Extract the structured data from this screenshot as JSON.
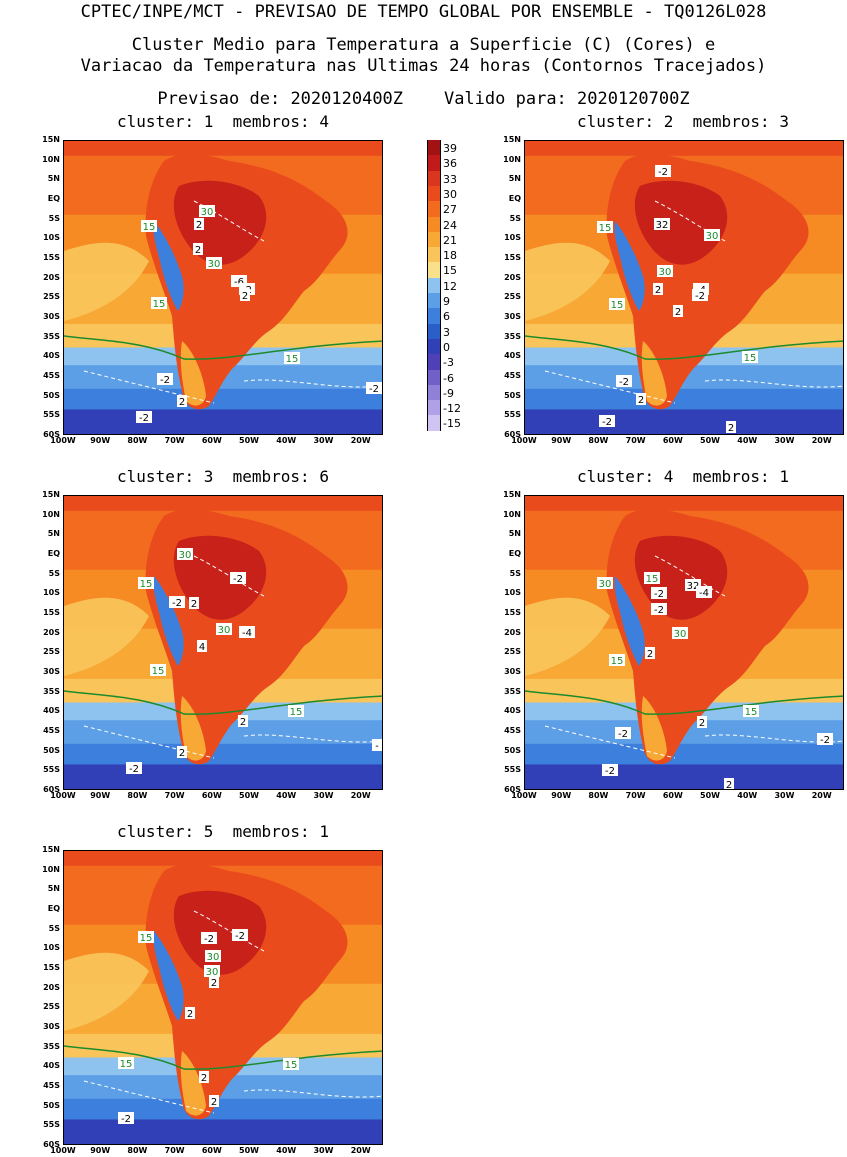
{
  "header": {
    "top": "CPTEC/INPE/MCT - PREVISAO DE TEMPO GLOBAL POR ENSEMBLE - TQ0126L028",
    "title_line1": "Cluster Medio para Temperatura a Superficie (C) (Cores) e",
    "title_line2": "Variacao da Temperatura nas Ultimas 24 horas (Contornos Tracejados)",
    "dates": "Previsao de: 2020120400Z    Valido para: 2020120700Z"
  },
  "panels": [
    {
      "title": "cluster: 1  membros: 4",
      "labels": [
        [
          "15",
          "green"
        ],
        [
          "15",
          "green"
        ],
        [
          "15",
          "green"
        ],
        [
          "30",
          "green"
        ],
        [
          "30",
          "green"
        ],
        [
          "2",
          "white"
        ],
        [
          "2",
          "white"
        ],
        [
          "-6",
          "white"
        ],
        [
          "-2",
          "white"
        ],
        [
          "2",
          "white"
        ],
        [
          "-2",
          "white"
        ],
        [
          "2",
          "white"
        ],
        [
          "-2",
          "white"
        ],
        [
          "-2",
          "white"
        ]
      ]
    },
    {
      "title": "cluster: 2  membros: 3",
      "labels": [
        [
          "-2",
          "white"
        ],
        [
          "15",
          "green"
        ],
        [
          "32",
          "white"
        ],
        [
          "30",
          "green"
        ],
        [
          "30",
          "green"
        ],
        [
          "2",
          "white"
        ],
        [
          "-4",
          "white"
        ],
        [
          "-2",
          "white"
        ],
        [
          "2",
          "white"
        ],
        [
          "15",
          "green"
        ],
        [
          "15",
          "green"
        ],
        [
          "-2",
          "white"
        ],
        [
          "2",
          "white"
        ],
        [
          "-2",
          "white"
        ],
        [
          "2",
          "white"
        ]
      ]
    },
    {
      "title": "cluster: 3  membros: 6",
      "labels": [
        [
          "30",
          "green"
        ],
        [
          "15",
          "green"
        ],
        [
          "-2",
          "white"
        ],
        [
          "-2",
          "white"
        ],
        [
          "2",
          "white"
        ],
        [
          "30",
          "green"
        ],
        [
          "-4",
          "white"
        ],
        [
          "4",
          "white"
        ],
        [
          "15",
          "green"
        ],
        [
          "15",
          "green"
        ],
        [
          "2",
          "white"
        ],
        [
          "2",
          "white"
        ],
        [
          "-2",
          "white"
        ],
        [
          "-",
          "white"
        ]
      ]
    },
    {
      "title": "cluster: 4  membros: 1",
      "labels": [
        [
          "15",
          "green"
        ],
        [
          "30",
          "green"
        ],
        [
          "32",
          "white"
        ],
        [
          "-2",
          "white"
        ],
        [
          "-4",
          "white"
        ],
        [
          "-2",
          "white"
        ],
        [
          "30",
          "green"
        ],
        [
          "2",
          "white"
        ],
        [
          "15",
          "green"
        ],
        [
          "15",
          "green"
        ],
        [
          "2",
          "white"
        ],
        [
          "-2",
          "white"
        ],
        [
          "-2",
          "white"
        ],
        [
          "-2",
          "white"
        ],
        [
          "2",
          "white"
        ]
      ]
    },
    {
      "title": "cluster: 5  membros: 1",
      "labels": [
        [
          "15",
          "green"
        ],
        [
          "-2",
          "white"
        ],
        [
          "-2",
          "white"
        ],
        [
          "30",
          "green"
        ],
        [
          "30",
          "green"
        ],
        [
          "2",
          "white"
        ],
        [
          "2",
          "white"
        ],
        [
          "15",
          "green"
        ],
        [
          "15",
          "green"
        ],
        [
          "2",
          "white"
        ],
        [
          "2",
          "white"
        ],
        [
          "-2",
          "white"
        ]
      ]
    }
  ],
  "lat_labels": [
    "15N",
    "10N",
    "5N",
    "EQ",
    "5S",
    "10S",
    "15S",
    "20S",
    "25S",
    "30S",
    "35S",
    "40S",
    "45S",
    "50S",
    "55S",
    "60S"
  ],
  "lon_labels": [
    "100W",
    "90W",
    "80W",
    "70W",
    "60W",
    "50W",
    "40W",
    "30W",
    "20W"
  ],
  "colorbar": {
    "values": [
      "39",
      "36",
      "33",
      "30",
      "27",
      "24",
      "21",
      "18",
      "15",
      "12",
      "9",
      "6",
      "3",
      "0",
      "-3",
      "-6",
      "-9",
      "-12",
      "-15"
    ],
    "colors": [
      "#a31212",
      "#c21a1a",
      "#d9351f",
      "#ea4b1c",
      "#f26b1e",
      "#f68a23",
      "#f8a834",
      "#f9c55b",
      "#fbe08b",
      "#8ec2ef",
      "#5d9fe6",
      "#3d7fdc",
      "#2a5fc8",
      "#3240b8",
      "#5040b8",
      "#7060c8",
      "#9080d8",
      "#b0a0e6",
      "#d0c4f2"
    ]
  }
}
